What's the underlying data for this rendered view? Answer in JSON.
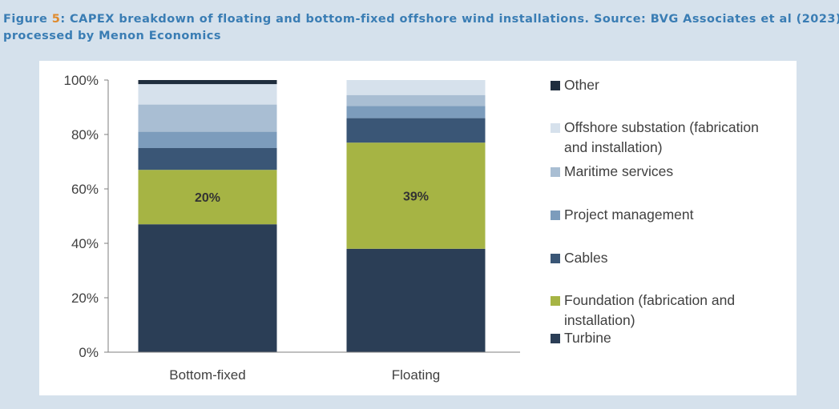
{
  "caption": {
    "line1_prefix": "Figure ",
    "fig_number": "5",
    "line1_suffix": ": CAPEX breakdown of floating and bottom-fixed offshore wind installations. Source: BVG Associates et al (2023),",
    "line2": "processed by Menon Economics"
  },
  "colors": {
    "turbine": "#2b3e56",
    "foundation": "#a6b444",
    "cables": "#3a5676",
    "project_management": "#7c9cbc",
    "maritime_services": "#a9bed3",
    "offshore_substation": "#d6e1ec",
    "other": "#1f2d3d"
  },
  "chart_data": {
    "type": "bar",
    "stacked": true,
    "categories": [
      "Bottom-fixed",
      "Floating"
    ],
    "y_ticks": [
      "0%",
      "20%",
      "40%",
      "60%",
      "80%",
      "100%"
    ],
    "ylim": [
      0,
      100
    ],
    "grid": false,
    "legend_position": "right",
    "series": [
      {
        "name": "Turbine",
        "color_key": "turbine",
        "values": [
          47,
          38
        ],
        "labels": [
          "",
          ""
        ]
      },
      {
        "name": "Foundation (fabrication and installation)",
        "color_key": "foundation",
        "values": [
          20,
          39
        ],
        "labels": [
          "20%",
          "39%"
        ]
      },
      {
        "name": "Cables",
        "color_key": "cables",
        "values": [
          8,
          9
        ],
        "labels": [
          "",
          ""
        ]
      },
      {
        "name": "Project management",
        "color_key": "project_management",
        "values": [
          6,
          4.5
        ],
        "labels": [
          "",
          ""
        ]
      },
      {
        "name": "Maritime services",
        "color_key": "maritime_services",
        "values": [
          10,
          4
        ],
        "labels": [
          "",
          ""
        ]
      },
      {
        "name": "Offshore substation (fabrication and installation)",
        "color_key": "offshore_substation",
        "values": [
          7.5,
          5.5
        ],
        "labels": [
          "",
          ""
        ]
      },
      {
        "name": "Other",
        "color_key": "other",
        "values": [
          1.5,
          0
        ],
        "labels": [
          "",
          ""
        ]
      }
    ],
    "legend": [
      {
        "lines": [
          "Other"
        ],
        "color_key": "other"
      },
      {
        "lines": [
          "Offshore substation (fabrication",
          "and installation)"
        ],
        "color_key": "offshore_substation"
      },
      {
        "lines": [
          "Maritime services"
        ],
        "color_key": "maritime_services"
      },
      {
        "lines": [
          "Project management"
        ],
        "color_key": "project_management"
      },
      {
        "lines": [
          "Cables"
        ],
        "color_key": "cables"
      },
      {
        "lines": [
          "Foundation (fabrication and",
          "installation)"
        ],
        "color_key": "foundation"
      },
      {
        "lines": [
          "Turbine"
        ],
        "color_key": "turbine"
      }
    ]
  }
}
